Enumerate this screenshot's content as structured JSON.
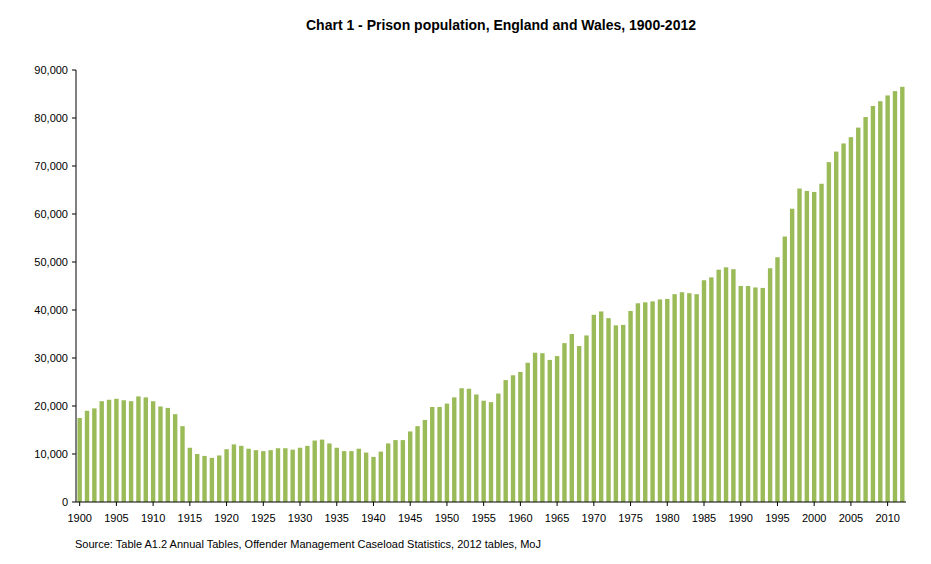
{
  "chart_data": {
    "type": "bar",
    "title": "Chart 1 - Prison population, England and Wales, 1900-2012",
    "source": "Source: Table A1.2 Annual Tables, Offender Management Caseload Statistics, 2012 tables, MoJ",
    "color": "#9bbb59",
    "grid": false,
    "ylim": [
      0,
      90000
    ],
    "yticks": [
      0,
      {
        "value": 10000,
        "label": "10,000"
      },
      {
        "value": 20000,
        "label": "20,000"
      },
      {
        "value": 30000,
        "label": "30,000"
      },
      {
        "value": 40000,
        "label": "40,000"
      },
      {
        "value": 50000,
        "label": "50,000"
      },
      {
        "value": 60000,
        "label": "60,000"
      },
      {
        "value": 70000,
        "label": "70,000"
      },
      {
        "value": 80000,
        "label": "80,000"
      },
      {
        "value": 90000,
        "label": "90,000"
      }
    ],
    "categories": [
      1900,
      null,
      null,
      null,
      null,
      1905,
      null,
      null,
      null,
      null,
      1910,
      null,
      null,
      null,
      null,
      1915,
      null,
      null,
      null,
      null,
      1920,
      null,
      null,
      null,
      null,
      1925,
      null,
      null,
      null,
      null,
      1930,
      null,
      null,
      null,
      null,
      1935,
      null,
      null,
      null,
      null,
      1940,
      null,
      null,
      null,
      null,
      1945,
      null,
      null,
      null,
      null,
      1950,
      null,
      null,
      null,
      null,
      1955,
      null,
      null,
      null,
      null,
      1960,
      null,
      null,
      null,
      null,
      1965,
      null,
      null,
      null,
      null,
      1970,
      null,
      null,
      null,
      null,
      1975,
      null,
      null,
      null,
      null,
      1980,
      null,
      null,
      null,
      null,
      1985,
      null,
      null,
      null,
      null,
      1990,
      null,
      null,
      null,
      null,
      1995,
      null,
      null,
      null,
      null,
      2000,
      null,
      null,
      null,
      null,
      2005,
      null,
      null,
      null,
      null,
      2010,
      null,
      null
    ],
    "values": [
      17500,
      19000,
      19500,
      21000,
      21300,
      21500,
      21200,
      21000,
      22000,
      21800,
      21000,
      19900,
      19600,
      18300,
      15800,
      11300,
      10000,
      9600,
      9200,
      9700,
      11000,
      12000,
      11700,
      11100,
      10800,
      10600,
      10800,
      11200,
      11200,
      10900,
      11300,
      11700,
      12800,
      13000,
      12200,
      11300,
      10600,
      10600,
      11100,
      10300,
      9400,
      10500,
      12200,
      12900,
      12900,
      14700,
      15800,
      17100,
      19800,
      19800,
      20500,
      21800,
      23700,
      23600,
      22400,
      21100,
      20800,
      22600,
      25400,
      26400,
      27100,
      29000,
      31100,
      31000,
      29600,
      30400,
      33100,
      35000,
      32500,
      34700,
      39000,
      39700,
      38300,
      36800,
      36900,
      39800,
      41400,
      41600,
      41800,
      42200,
      42300,
      43300,
      43700,
      43500,
      43300,
      46200,
      46800,
      48400,
      48900,
      48500,
      45000,
      45000,
      44700,
      44600,
      48700,
      51000,
      55300,
      61100,
      65300,
      64800,
      64600,
      66300,
      70800,
      73000,
      74700,
      76000,
      78000,
      80200,
      82500,
      83500,
      84700,
      85600,
      86500
    ]
  }
}
